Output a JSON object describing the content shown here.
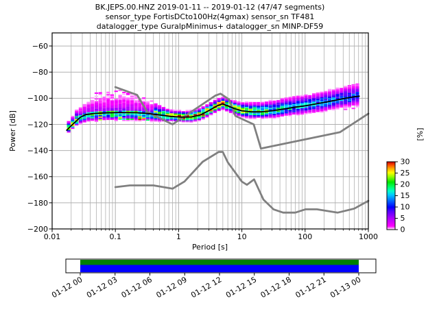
{
  "title": {
    "line1": "BK.JEPS.00.HNZ   2019-01-11 -- 2019-01-12  (47/47 segments)",
    "line2": "sensor_type FortisDCto100Hz(4gmax) sensor_sn TF481",
    "line3": "datalogger_type GuralpMinimus+ datalogger_sn MINP-DF59"
  },
  "axes": {
    "xlabel": "Period [s]",
    "ylabel": "Power [dB]",
    "xtick_labels": [
      "0.01",
      "0.1",
      "1",
      "10",
      "100",
      "1000"
    ],
    "ytick_labels": [
      "−60",
      "−80",
      "−100",
      "−120",
      "−140",
      "−160",
      "−180",
      "−200"
    ],
    "grid_color": "#b0b0b0",
    "frame_color": "#000000"
  },
  "colorbar": {
    "label": "[%]",
    "tick_labels": [
      "0",
      "5",
      "10",
      "15",
      "20",
      "25",
      "30"
    ],
    "stops": [
      [
        0.0,
        "#ffffff"
      ],
      [
        0.05,
        "#ff00ff"
      ],
      [
        0.17,
        "#aa00ff"
      ],
      [
        0.27,
        "#5500ff"
      ],
      [
        0.33,
        "#0000ff"
      ],
      [
        0.43,
        "#006eff"
      ],
      [
        0.51,
        "#00c8ff"
      ],
      [
        0.57,
        "#00ffc8"
      ],
      [
        0.63,
        "#00ff64"
      ],
      [
        0.7,
        "#00e600"
      ],
      [
        0.78,
        "#96ff00"
      ],
      [
        0.84,
        "#ffff00"
      ],
      [
        0.9,
        "#ffaa00"
      ],
      [
        0.95,
        "#ff5000"
      ],
      [
        1.0,
        "#c80000"
      ]
    ]
  },
  "timeline": {
    "tick_labels": [
      "01-12 00",
      "01-12 03",
      "01-12 06",
      "01-12 09",
      "01-12 12",
      "01-12 15",
      "01-12 18",
      "01-12 21",
      "01-13 00"
    ],
    "coverage_top_color": "#008000",
    "coverage_bottom_color": "#0000ff"
  },
  "chart_data": {
    "type": "heatmap",
    "title": "BK.JEPS.00.HNZ 2019-01-11 -- 2019-01-12 (47/47 segments)",
    "subtitle": "sensor_type FortisDCto100Hz(4gmax) sensor_sn TF481 | datalogger_type GuralpMinimus+ datalogger_sn MINP-DF59",
    "xlabel": "Period [s]",
    "ylabel": "Power [dB]",
    "xscale": "log",
    "xlim": [
      0.01,
      1000
    ],
    "ylim": [
      -200,
      -50
    ],
    "grid": true,
    "legend_position": "none",
    "colorbar": {
      "label": "[%]",
      "range": [
        0,
        30
      ],
      "ticks": [
        0,
        5,
        10,
        15,
        20,
        25,
        30
      ]
    },
    "series": [
      {
        "name": "ppsd-mode",
        "type": "line",
        "color": "#000000",
        "x": [
          0.017,
          0.02,
          0.024,
          0.028,
          0.034,
          0.045,
          0.07,
          0.12,
          0.22,
          0.32,
          0.5,
          0.75,
          1.1,
          1.6,
          2.2,
          3.0,
          4.0,
          4.9,
          6.0,
          7.5,
          10,
          14,
          20,
          30,
          45,
          70,
          100,
          150,
          220,
          320,
          450,
          600,
          720
        ],
        "y": [
          -124.5,
          -121,
          -117.5,
          -114.5,
          -112.5,
          -111.7,
          -111.2,
          -110.9,
          -111.1,
          -111.6,
          -112.8,
          -113.9,
          -114.4,
          -114.3,
          -112.8,
          -109.5,
          -106,
          -104.3,
          -105.8,
          -107.8,
          -109.6,
          -110.4,
          -110.4,
          -109.6,
          -108.3,
          -106.8,
          -105.8,
          -104.3,
          -102.8,
          -101.3,
          -99.9,
          -98.9,
          -98.4
        ]
      },
      {
        "name": "noise-model-NHNM",
        "type": "line",
        "color": "#808080",
        "x": [
          0.1,
          0.22,
          0.32,
          0.8,
          3.8,
          4.6,
          6.3,
          7.9,
          15.4,
          20.0,
          354.8,
          1000
        ],
        "y": [
          -91.5,
          -97.4,
          -110.5,
          -120.0,
          -98.0,
          -96.5,
          -101.0,
          -113.5,
          -120.0,
          -138.5,
          -126.0,
          -111.8
        ]
      },
      {
        "name": "noise-model-NLNM",
        "type": "line",
        "color": "#808080",
        "x": [
          0.1,
          0.17,
          0.4,
          0.8,
          1.24,
          2.4,
          4.3,
          5.0,
          6.0,
          10.0,
          12.0,
          15.6,
          21.9,
          31.6,
          45.0,
          70.0,
          101.0,
          154.0,
          328.0,
          600.0,
          1000
        ],
        "y": [
          -168.0,
          -166.7,
          -166.7,
          -169.2,
          -163.7,
          -148.6,
          -141.1,
          -141.1,
          -149.0,
          -163.8,
          -166.2,
          -162.1,
          -177.5,
          -185.0,
          -187.5,
          -187.5,
          -185.0,
          -185.0,
          -187.5,
          -184.4,
          -178.5
        ]
      }
    ],
    "histogram_profile": {
      "description": "Estimated PPSD probability histogram: per period, mode dB (series ppsd-mode), downward/upward spread in dB and peak percentage; tail=long sparse upper tail of low-probability (magenta) bins",
      "period": [
        0.017,
        0.022,
        0.03,
        0.05,
        0.12,
        0.3,
        0.5,
        0.8,
        1.6,
        3.0,
        4.9,
        8,
        15,
        30,
        60,
        120,
        250,
        450,
        720
      ],
      "spread_down_db": [
        1.5,
        2.0,
        3.5,
        4.0,
        4.0,
        4.0,
        3.0,
        2.2,
        2.2,
        2.5,
        2.5,
        2.8,
        3.2,
        3.6,
        4.0,
        4.5,
        5.0,
        5.0,
        5.5
      ],
      "spread_up_db": [
        3.5,
        4.0,
        9,
        12,
        13,
        10,
        5,
        3,
        3,
        3.5,
        3.5,
        4,
        5,
        5.5,
        6,
        6,
        6.5,
        6.5,
        7
      ],
      "peak_percent": [
        28,
        24,
        22,
        22,
        22,
        20,
        26,
        30,
        30,
        30,
        30,
        27,
        24,
        21,
        18,
        16,
        15,
        14,
        13
      ],
      "upper_tail": [
        0,
        0,
        1,
        1,
        1,
        1,
        0,
        0,
        0,
        0,
        0,
        0,
        0,
        0,
        0,
        0,
        0,
        0,
        0
      ]
    }
  }
}
